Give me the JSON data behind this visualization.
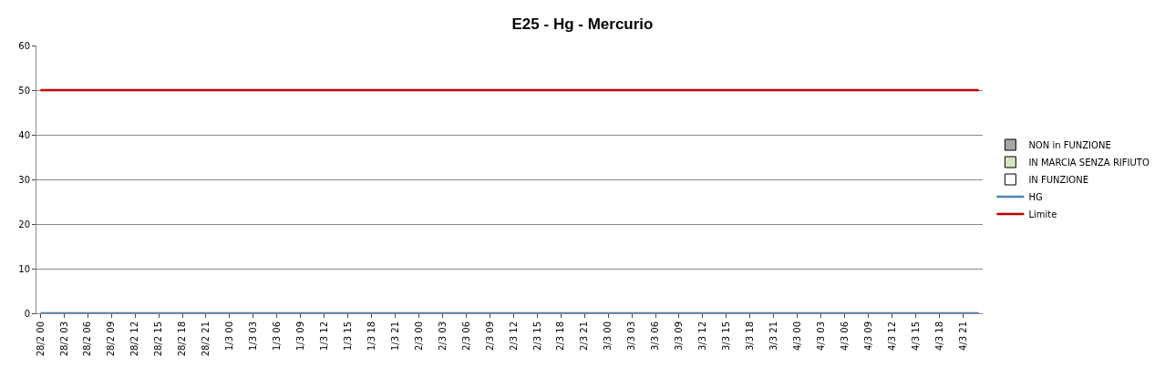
{
  "chart_data": {
    "type": "line",
    "title": "E25 - Hg - Mercurio",
    "categories": [
      "28/2 00",
      null,
      null,
      "28/2 03",
      null,
      null,
      "28/2 06",
      null,
      null,
      "28/2 09",
      null,
      null,
      "28/2 12",
      null,
      null,
      "28/2 15",
      null,
      null,
      "28/2 18",
      null,
      null,
      "28/2 21",
      null,
      null,
      "1/3 00",
      null,
      null,
      "1/3 03",
      null,
      null,
      "1/3 06",
      null,
      null,
      "1/3 09",
      null,
      null,
      "1/3 12",
      null,
      null,
      "1/3 15",
      null,
      null,
      "1/3 18",
      null,
      null,
      "1/3 21",
      null,
      null,
      "2/3 00",
      null,
      null,
      "2/3 03",
      null,
      null,
      "2/3 06",
      null,
      null,
      "2/3 09",
      null,
      null,
      "2/3 12",
      null,
      null,
      "2/3 15",
      null,
      null,
      "2/3 18",
      null,
      null,
      "2/3 21",
      null,
      null,
      "3/3 00",
      null,
      null,
      "3/3 03",
      null,
      null,
      "3/3 06",
      null,
      null,
      "3/3 09",
      null,
      null,
      "3/3 12",
      null,
      null,
      "3/3 15",
      null,
      null,
      "3/3 18",
      null,
      null,
      "3/3 21",
      null,
      null,
      "4/3 00",
      null,
      null,
      "4/3 03",
      null,
      null,
      "4/3 06",
      null,
      null,
      "4/3 09",
      null,
      null,
      "4/3 12",
      null,
      null,
      "4/3 15",
      null,
      null,
      "4/3 18",
      null,
      null,
      "4/3 21",
      null,
      null
    ],
    "series": [
      {
        "name": "NON in FUNZIONE",
        "type": "bar",
        "color": "#a6a6a6",
        "values": [
          null,
          null,
          null,
          null,
          null,
          null,
          null,
          null,
          null,
          null,
          null,
          null,
          null,
          null,
          null,
          null,
          null,
          null,
          null,
          null,
          null,
          null,
          null,
          null,
          null,
          null,
          null,
          null,
          null,
          null,
          null,
          null,
          null,
          null,
          null,
          null,
          null,
          null,
          null,
          null,
          null,
          null,
          null,
          null,
          null,
          null,
          null,
          null,
          null,
          null,
          null,
          null,
          null,
          null,
          null,
          null,
          null,
          null,
          null,
          null,
          null,
          null,
          null,
          null,
          null,
          null,
          null,
          null,
          null,
          null,
          null,
          null,
          null,
          null,
          null,
          null,
          null,
          null,
          null,
          null,
          null,
          null,
          null,
          null,
          null,
          null,
          null,
          null,
          null,
          null,
          null,
          null,
          null,
          null,
          null,
          null,
          null,
          null,
          null,
          null,
          null,
          null,
          null,
          null,
          null,
          null,
          null,
          null,
          null,
          null,
          null,
          null,
          null,
          null,
          null,
          null,
          null,
          null,
          null,
          null
        ]
      },
      {
        "name": "IN MARCIA SENZA RIFIUTO",
        "type": "bar",
        "color": "#d7e4bd",
        "values": [
          null,
          null,
          null,
          null,
          null,
          null,
          null,
          null,
          null,
          null,
          null,
          null,
          null,
          null,
          null,
          null,
          null,
          null,
          null,
          null,
          null,
          null,
          null,
          null,
          null,
          null,
          null,
          null,
          null,
          null,
          null,
          null,
          null,
          null,
          null,
          null,
          null,
          null,
          null,
          null,
          null,
          null,
          null,
          null,
          null,
          null,
          null,
          null,
          null,
          null,
          null,
          null,
          null,
          null,
          null,
          null,
          null,
          null,
          null,
          null,
          null,
          null,
          null,
          null,
          null,
          null,
          null,
          null,
          null,
          null,
          null,
          null,
          null,
          null,
          null,
          null,
          null,
          null,
          null,
          null,
          null,
          null,
          null,
          null,
          null,
          null,
          null,
          null,
          null,
          null,
          null,
          null,
          null,
          null,
          null,
          null,
          null,
          null,
          null,
          null,
          null,
          null,
          null,
          null,
          null,
          null,
          null,
          null,
          null,
          null,
          null,
          null,
          null,
          null,
          null,
          null,
          null,
          null,
          null,
          null
        ]
      },
      {
        "name": "IN FUNZIONE",
        "type": "bar",
        "color": "#ffffff",
        "values": [
          null,
          null,
          null,
          null,
          null,
          null,
          null,
          null,
          null,
          null,
          null,
          null,
          null,
          null,
          null,
          null,
          null,
          null,
          null,
          null,
          null,
          null,
          null,
          null,
          null,
          null,
          null,
          null,
          null,
          null,
          null,
          null,
          null,
          null,
          null,
          null,
          null,
          null,
          null,
          null,
          null,
          null,
          null,
          null,
          null,
          null,
          null,
          null,
          null,
          null,
          null,
          null,
          null,
          null,
          null,
          null,
          null,
          null,
          null,
          null,
          null,
          null,
          null,
          null,
          null,
          null,
          null,
          null,
          null,
          null,
          null,
          null,
          null,
          null,
          null,
          null,
          null,
          null,
          null,
          null,
          null,
          null,
          null,
          null,
          null,
          null,
          null,
          null,
          null,
          null,
          null,
          null,
          null,
          null,
          null,
          null,
          null,
          null,
          null,
          null,
          null,
          null,
          null,
          null,
          null,
          null,
          null,
          null,
          null,
          null,
          null,
          null,
          null,
          null,
          null,
          null,
          null,
          null,
          null,
          null
        ]
      },
      {
        "name": "HG",
        "color": "#4f81bd",
        "values": [
          0,
          0,
          0,
          0,
          0,
          0,
          0,
          0,
          0,
          0,
          0,
          0,
          0,
          0,
          0,
          0,
          0,
          0,
          0,
          0,
          0,
          0,
          0,
          0,
          0,
          0,
          0,
          0,
          0,
          0,
          0,
          0,
          0,
          0,
          0,
          0,
          0,
          0,
          0,
          0,
          0,
          0,
          0,
          0,
          0,
          0,
          0,
          0,
          0,
          0,
          0,
          0,
          0,
          0,
          0,
          0,
          0,
          0,
          0,
          0,
          0,
          0,
          0,
          0,
          0,
          0,
          0,
          0,
          0,
          0,
          0,
          0,
          0,
          0,
          0,
          0,
          0,
          0,
          0,
          0,
          0,
          0,
          0,
          0,
          0,
          0,
          0,
          0,
          0,
          0,
          0,
          0,
          0,
          0,
          0,
          0,
          0,
          0,
          0,
          0,
          0,
          0,
          0,
          0,
          0,
          0,
          0,
          0,
          0,
          0,
          0,
          0,
          0,
          0,
          0,
          0,
          0,
          0,
          0,
          0
        ]
      },
      {
        "name": "Limite",
        "color": "#c00000",
        "values": [
          50,
          50,
          50,
          50,
          50,
          50,
          50,
          50,
          50,
          50,
          50,
          50,
          50,
          50,
          50,
          50,
          50,
          50,
          50,
          50,
          50,
          50,
          50,
          50,
          50,
          50,
          50,
          50,
          50,
          50,
          50,
          50,
          50,
          50,
          50,
          50,
          50,
          50,
          50,
          50,
          50,
          50,
          50,
          50,
          50,
          50,
          50,
          50,
          50,
          50,
          50,
          50,
          50,
          50,
          50,
          50,
          50,
          50,
          50,
          50,
          50,
          50,
          50,
          50,
          50,
          50,
          50,
          50,
          50,
          50,
          50,
          50,
          50,
          50,
          50,
          50,
          50,
          50,
          50,
          50,
          50,
          50,
          50,
          50,
          50,
          50,
          50,
          50,
          50,
          50,
          50,
          50,
          50,
          50,
          50,
          50,
          50,
          50,
          50,
          50,
          50,
          50,
          50,
          50,
          50,
          50,
          50,
          50,
          50,
          50,
          50,
          50,
          50,
          50,
          50,
          50,
          50,
          50,
          50,
          50
        ]
      }
    ],
    "ylim": [
      0,
      60
    ],
    "yticks": [
      0,
      10,
      20,
      30,
      40,
      50,
      60
    ],
    "grid": "y",
    "legend": "right",
    "marker": "none",
    "line_style": "solid"
  }
}
